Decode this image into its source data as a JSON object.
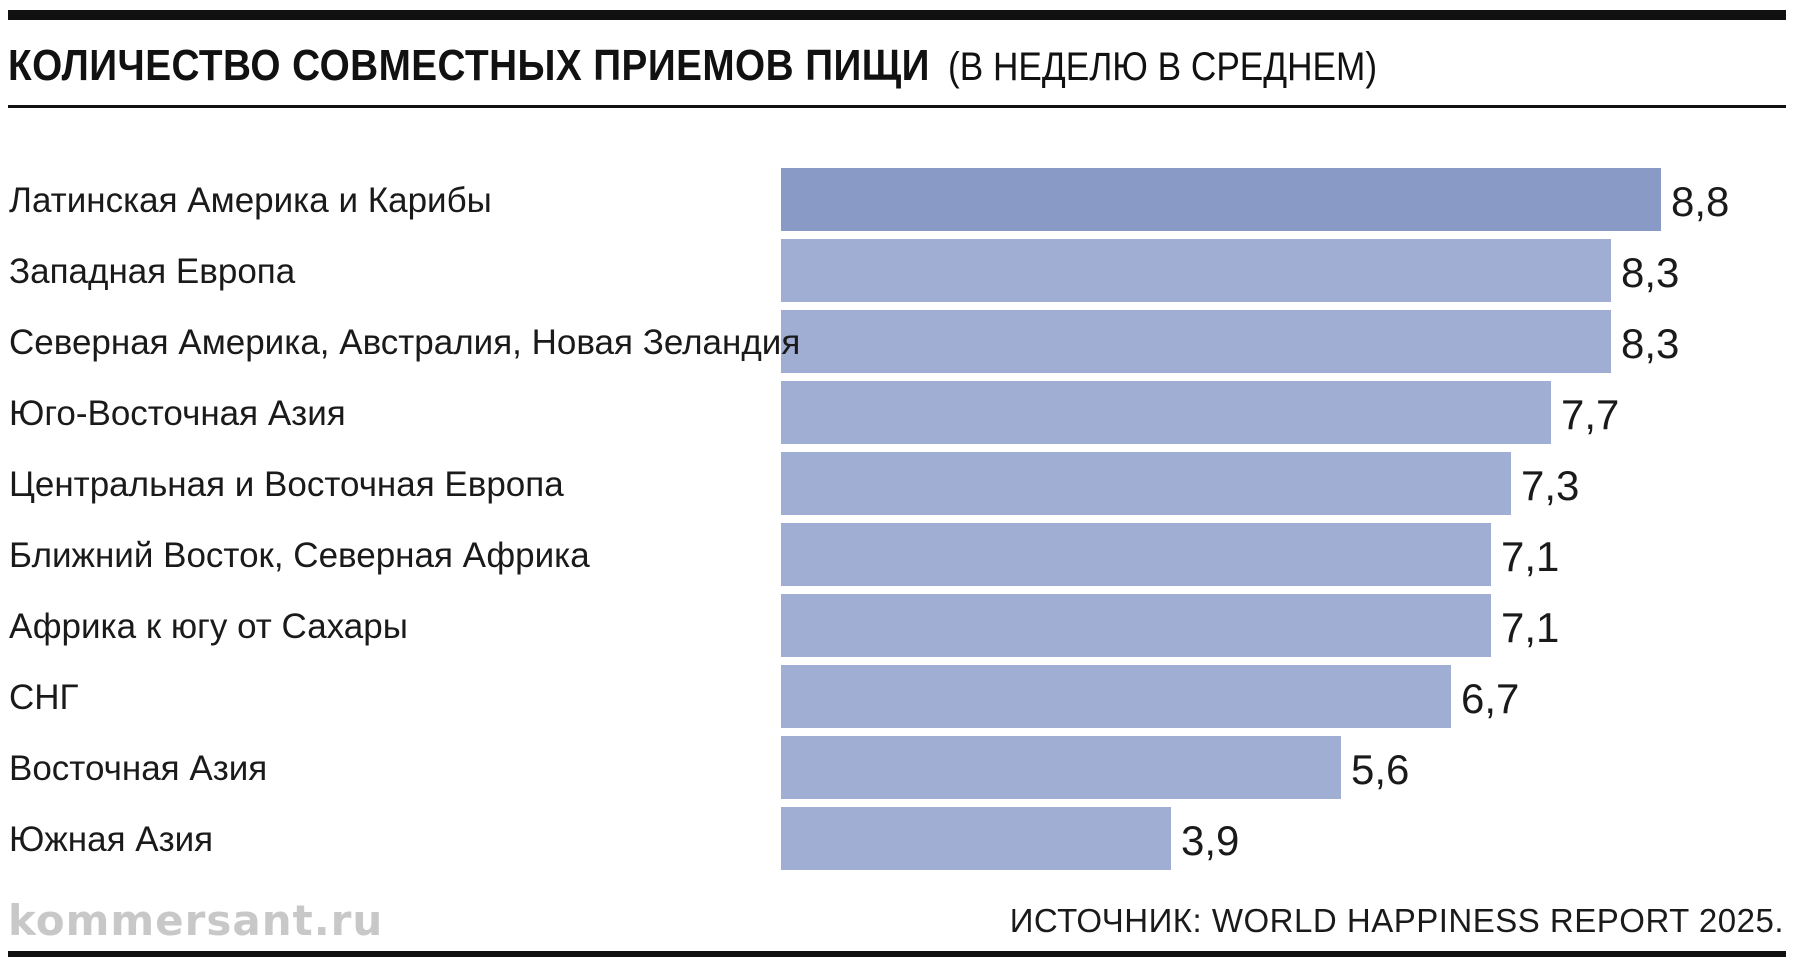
{
  "title": {
    "main": "КОЛИЧЕСТВО СОВМЕСТНЫХ ПРИЕМОВ ПИЩИ",
    "sub": "(В НЕДЕЛЮ В СРЕДНЕМ)"
  },
  "logo": "kommersant.ru",
  "source": "ИСТОЧНИК: WORLD HAPPINESS REPORT 2025.",
  "colors": {
    "highlight_bar": "#8a9ac6",
    "bar": "#a0aed4",
    "rules": "#111111"
  },
  "chart_data": {
    "type": "bar",
    "orientation": "horizontal",
    "categories": [
      "Латинская Америка и Карибы",
      "Западная Европа",
      "Северная Америка, Австралия, Новая Зеландия",
      "Юго-Восточная Азия",
      "Центральная и Восточная Европа",
      "Ближний Восток, Северная Африка",
      "Африка к югу от Сахары",
      "СНГ",
      "Восточная Азия",
      "Южная Азия"
    ],
    "values": [
      8.8,
      8.3,
      8.3,
      7.7,
      7.3,
      7.1,
      7.1,
      6.7,
      5.6,
      3.9
    ],
    "value_labels": [
      "8,8",
      "8,3",
      "8,3",
      "7,7",
      "7,3",
      "7,1",
      "7,1",
      "6,7",
      "5,6",
      "3,9"
    ],
    "highlighted_index": 0,
    "title": "КОЛИЧЕСТВО СОВМЕСТНЫХ ПРИЕМОВ ПИЩИ (В НЕДЕЛЮ В СРЕДНЕМ)",
    "xlabel": "",
    "ylabel": "",
    "grid": false,
    "legend": "none"
  }
}
